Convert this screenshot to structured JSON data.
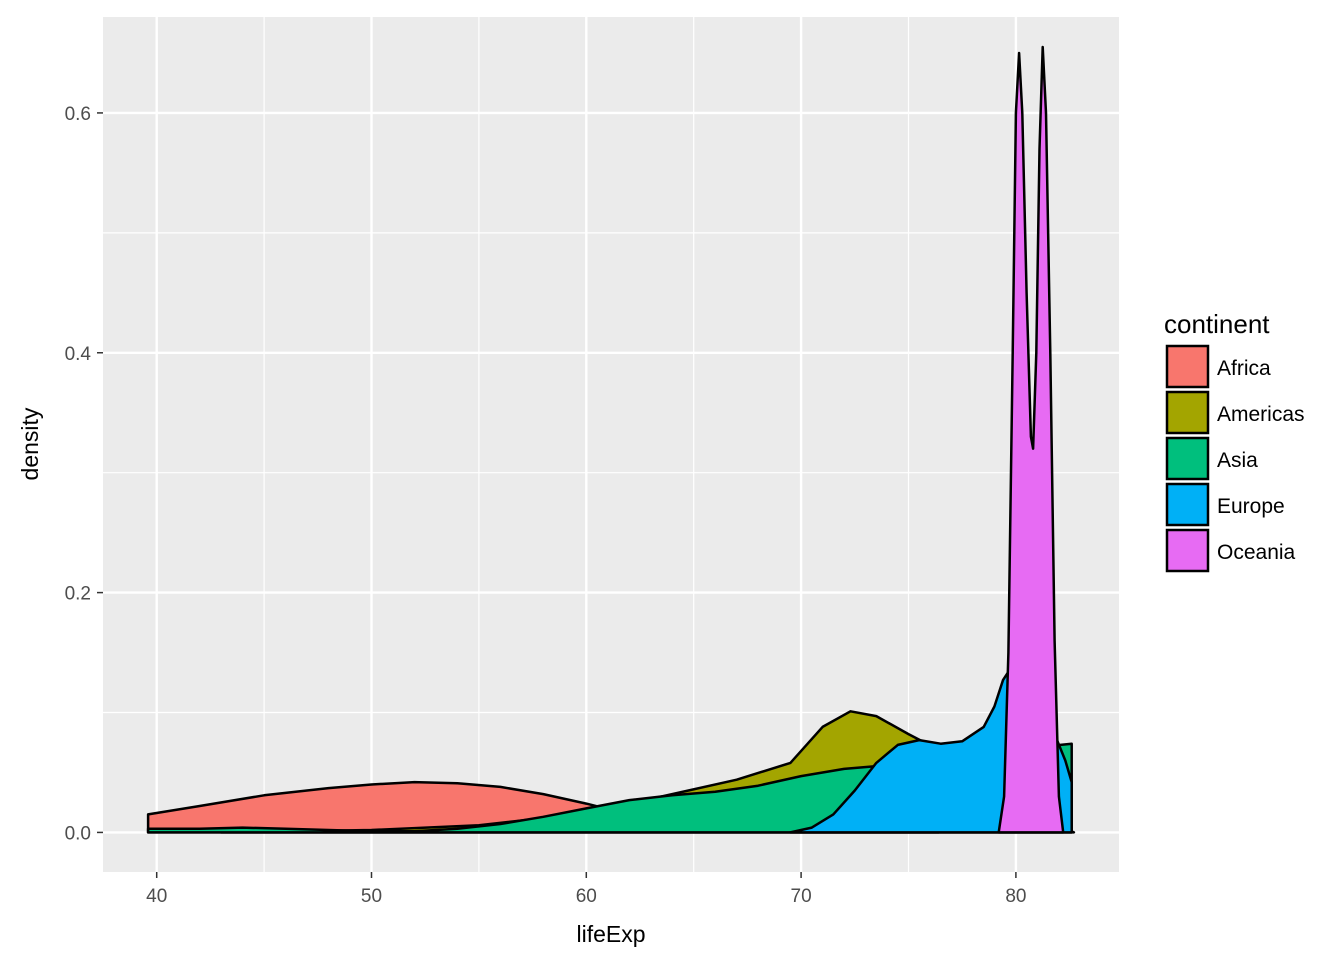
{
  "chart_data": {
    "type": "area",
    "xlabel": "lifeExp",
    "ylabel": "density",
    "xlim": [
      37.5,
      84.8
    ],
    "ylim": [
      -0.033,
      0.68
    ],
    "x_ticks": [
      40,
      50,
      60,
      70,
      80
    ],
    "y_ticks": [
      0.0,
      0.2,
      0.4,
      0.6
    ],
    "x_tick_labels": [
      "40",
      "50",
      "60",
      "70",
      "80"
    ],
    "y_tick_labels": [
      "0.0",
      "0.2",
      "0.4",
      "0.6"
    ],
    "grid": true,
    "legend": {
      "title": "continent",
      "position": "right"
    },
    "series": [
      {
        "name": "Africa",
        "color": "#F8766D",
        "points": [
          [
            39.6,
            0.015
          ],
          [
            42,
            0.022
          ],
          [
            45,
            0.031
          ],
          [
            48,
            0.037
          ],
          [
            50,
            0.04
          ],
          [
            52,
            0.042
          ],
          [
            54,
            0.041
          ],
          [
            56,
            0.038
          ],
          [
            58,
            0.032
          ],
          [
            60,
            0.024
          ],
          [
            62,
            0.015
          ],
          [
            64,
            0.008
          ],
          [
            66,
            0.003
          ],
          [
            68,
            0.001
          ],
          [
            70,
            0.0
          ],
          [
            76.4,
            0.0
          ]
        ]
      },
      {
        "name": "Americas",
        "color": "#A3A500",
        "points": [
          [
            43,
            0.0
          ],
          [
            50,
            0.002
          ],
          [
            55,
            0.006
          ],
          [
            60,
            0.016
          ],
          [
            64,
            0.032
          ],
          [
            67,
            0.044
          ],
          [
            69.5,
            0.058
          ],
          [
            71,
            0.088
          ],
          [
            72.3,
            0.101
          ],
          [
            73.5,
            0.097
          ],
          [
            75,
            0.082
          ],
          [
            76.5,
            0.068
          ],
          [
            78,
            0.058
          ],
          [
            79.5,
            0.045
          ],
          [
            80.5,
            0.028
          ],
          [
            81.5,
            0.01
          ],
          [
            82.7,
            0.0
          ]
        ]
      },
      {
        "name": "Asia",
        "color": "#00BF7D",
        "points": [
          [
            39.6,
            0.003
          ],
          [
            42,
            0.003
          ],
          [
            44,
            0.004
          ],
          [
            46,
            0.003
          ],
          [
            48,
            0.002
          ],
          [
            50,
            0.001
          ],
          [
            52,
            0.001
          ],
          [
            54,
            0.003
          ],
          [
            56,
            0.007
          ],
          [
            58,
            0.013
          ],
          [
            60,
            0.02
          ],
          [
            62,
            0.027
          ],
          [
            64,
            0.031
          ],
          [
            66,
            0.034
          ],
          [
            68,
            0.039
          ],
          [
            70,
            0.047
          ],
          [
            72,
            0.053
          ],
          [
            74,
            0.056
          ],
          [
            76,
            0.06
          ],
          [
            78,
            0.065
          ],
          [
            79.5,
            0.068
          ],
          [
            80.5,
            0.07
          ],
          [
            81.5,
            0.072
          ],
          [
            82.6,
            0.074
          ],
          [
            82.6,
            0.0
          ]
        ]
      },
      {
        "name": "Europe",
        "color": "#00B0F6",
        "points": [
          [
            69.5,
            0.0
          ],
          [
            70.5,
            0.004
          ],
          [
            71.5,
            0.015
          ],
          [
            72.5,
            0.035
          ],
          [
            73.5,
            0.058
          ],
          [
            74.5,
            0.073
          ],
          [
            75.5,
            0.077
          ],
          [
            76.5,
            0.074
          ],
          [
            77.5,
            0.076
          ],
          [
            78.5,
            0.088
          ],
          [
            79,
            0.105
          ],
          [
            79.4,
            0.127
          ],
          [
            79.8,
            0.138
          ],
          [
            80.3,
            0.132
          ],
          [
            81,
            0.11
          ],
          [
            81.8,
            0.082
          ],
          [
            82.3,
            0.06
          ],
          [
            82.6,
            0.042
          ],
          [
            82.6,
            0.0
          ]
        ]
      },
      {
        "name": "Oceania",
        "color": "#E76BF3",
        "points": [
          [
            79.2,
            0.0
          ],
          [
            79.45,
            0.03
          ],
          [
            79.65,
            0.15
          ],
          [
            79.85,
            0.4
          ],
          [
            80.0,
            0.6
          ],
          [
            80.15,
            0.65
          ],
          [
            80.3,
            0.6
          ],
          [
            80.5,
            0.45
          ],
          [
            80.7,
            0.33
          ],
          [
            80.8,
            0.32
          ],
          [
            80.95,
            0.4
          ],
          [
            81.1,
            0.57
          ],
          [
            81.25,
            0.655
          ],
          [
            81.4,
            0.6
          ],
          [
            81.6,
            0.4
          ],
          [
            81.8,
            0.16
          ],
          [
            82.0,
            0.03
          ],
          [
            82.2,
            0.0
          ]
        ]
      }
    ]
  }
}
